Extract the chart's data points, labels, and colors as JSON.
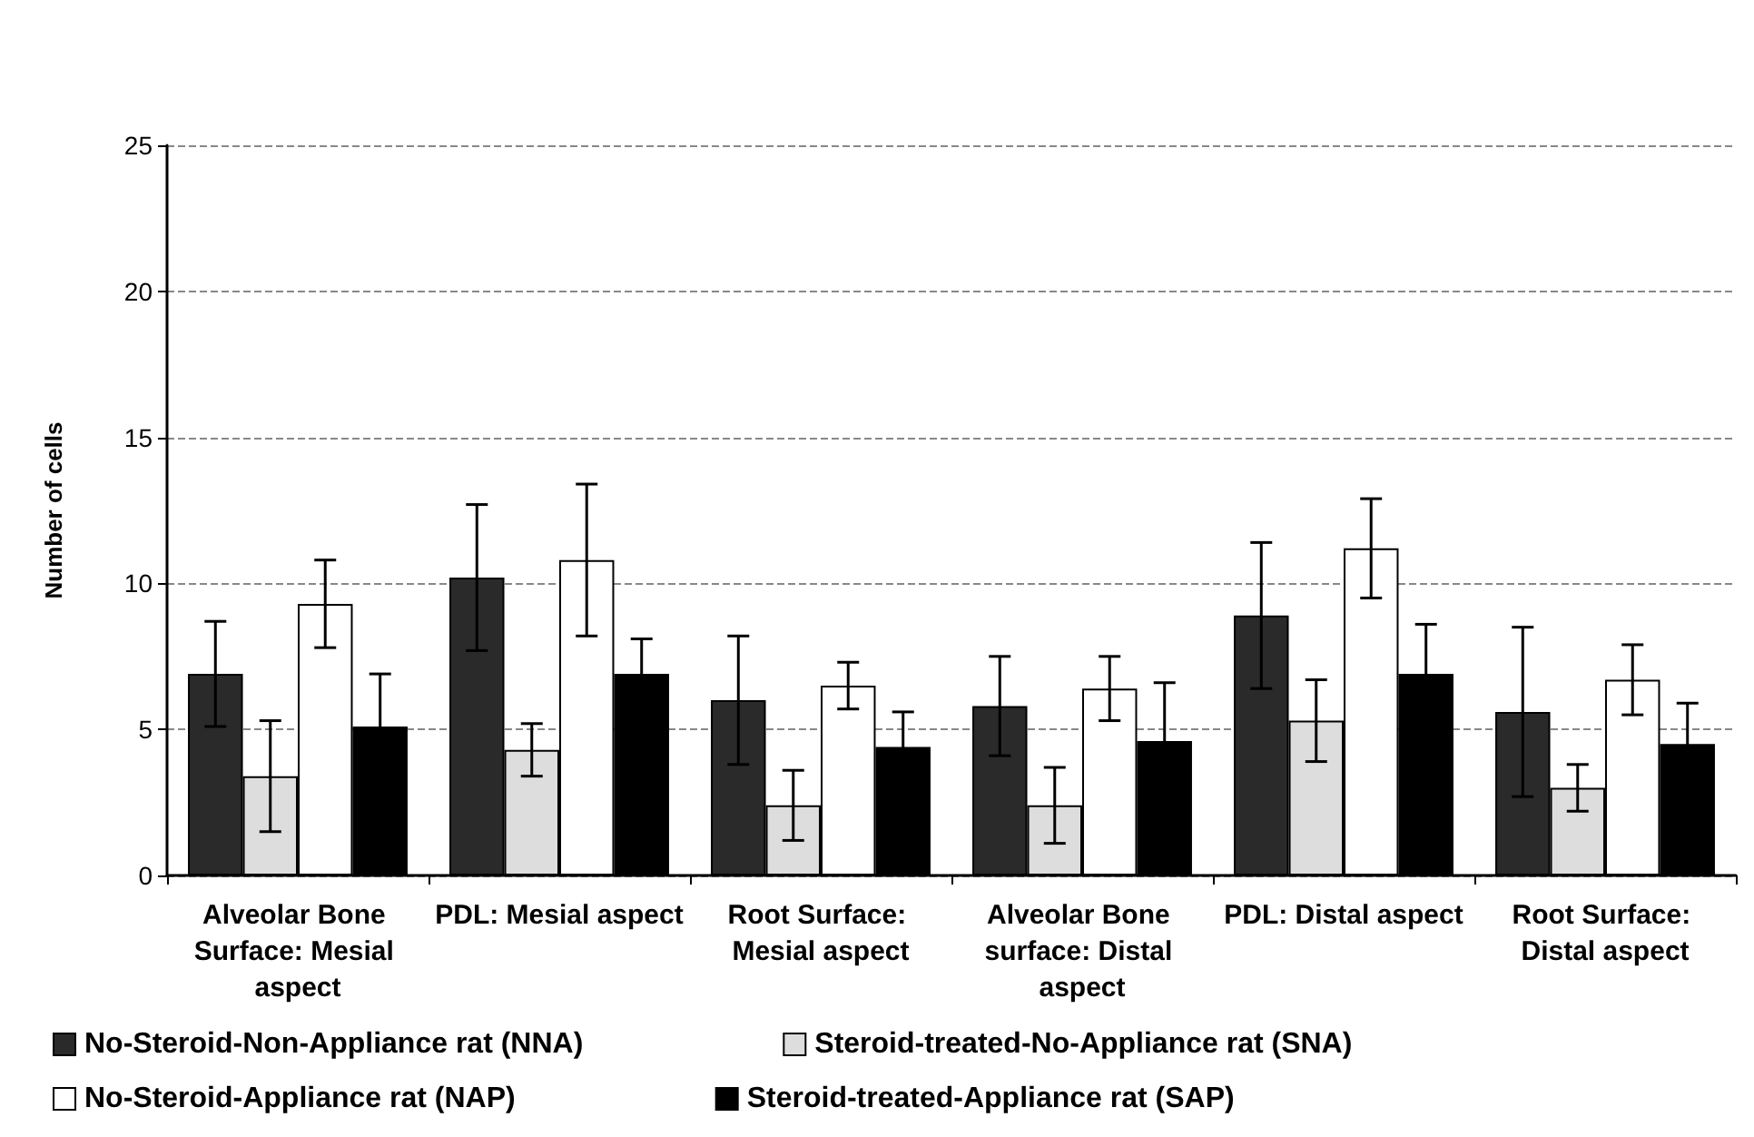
{
  "chart_data": {
    "type": "bar",
    "ylabel": "Number of cells",
    "categories": [
      "Alveolar Bone Surface: Mesial aspect",
      "PDL: Mesial aspect",
      "Root Surface: Mesial aspect",
      "Alveolar Bone surface: Distal aspect",
      "PDL: Distal aspect",
      "Root Surface: Distal aspect"
    ],
    "series": [
      {
        "name": "No-Steroid-Non-Appliance rat (NNA)",
        "color": "#2a2a2a",
        "values": [
          6.9,
          10.2,
          6.0,
          5.8,
          8.9,
          5.6
        ],
        "errors": [
          1.8,
          2.5,
          2.2,
          1.7,
          2.5,
          2.9
        ]
      },
      {
        "name": "Steroid-treated-No-Appliance rat (SNA)",
        "color": "#dddddd",
        "values": [
          3.4,
          4.3,
          2.4,
          2.4,
          5.3,
          3.0
        ],
        "errors": [
          1.9,
          0.9,
          1.2,
          1.3,
          1.4,
          0.8
        ]
      },
      {
        "name": "No-Steroid-Appliance rat (NAP)",
        "color": "#ffffff",
        "values": [
          9.3,
          10.8,
          6.5,
          6.4,
          11.2,
          6.7
        ],
        "errors": [
          1.5,
          2.6,
          0.8,
          1.1,
          1.7,
          1.2
        ]
      },
      {
        "name": "Steroid-treated-Appliance rat (SAP)",
        "color": "#000000",
        "values": [
          5.1,
          6.9,
          4.4,
          4.6,
          6.9,
          4.5
        ],
        "errors": [
          1.8,
          1.2,
          1.2,
          2.0,
          1.7,
          1.4
        ]
      }
    ],
    "ylim": [
      0,
      25
    ],
    "yticks": [
      0,
      5,
      10,
      15,
      20,
      25
    ],
    "grid": "y",
    "legend": "bottom"
  }
}
